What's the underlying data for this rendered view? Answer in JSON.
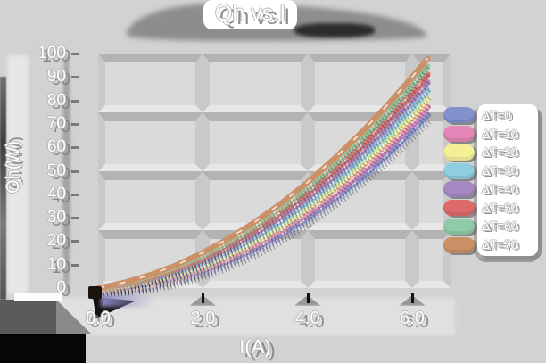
{
  "title": "Qh vs.I",
  "axes": {
    "x_label": "I(A)",
    "y_label": "Qh(W)",
    "x_ticks": [
      "0.0",
      "2.0",
      "4.0",
      "6.0"
    ],
    "y_ticks": [
      "0",
      "10",
      "20",
      "30",
      "40",
      "50",
      "60",
      "70",
      "80",
      "90",
      "100"
    ]
  },
  "legend": {
    "position": "right",
    "items": [
      {
        "label": "ΔT=0",
        "color": "#8290cc"
      },
      {
        "label": "ΔT=10",
        "color": "#e287b7"
      },
      {
        "label": "ΔT=20",
        "color": "#f5f098"
      },
      {
        "label": "ΔT=30",
        "color": "#8fcede"
      },
      {
        "label": "ΔT=40",
        "color": "#a688c3"
      },
      {
        "label": "ΔT=50",
        "color": "#dd6a6a"
      },
      {
        "label": "ΔT=60",
        "color": "#8fcba9"
      },
      {
        "label": "ΔT=70",
        "color": "#cc9066"
      }
    ]
  },
  "chart_data": {
    "type": "line",
    "title": "Qh vs.I",
    "xlabel": "I(A)",
    "ylabel": "Qh(W)",
    "xlim": [
      0,
      6.7
    ],
    "ylim": [
      0,
      100
    ],
    "x_tick_values": [
      0.0,
      2.0,
      4.0,
      6.0
    ],
    "y_tick_values": [
      0,
      10,
      20,
      30,
      40,
      50,
      60,
      70,
      80,
      90,
      100
    ],
    "grid": true,
    "legend_position": "right",
    "x": [
      0,
      0.5,
      1,
      1.5,
      2,
      2.5,
      3,
      3.5,
      4,
      4.5,
      5,
      5.5,
      6,
      6.3
    ],
    "series": [
      {
        "name": "ΔT=0",
        "color": "#8290cc",
        "values": [
          0,
          0.5,
          1.9,
          4.2,
          7.4,
          11.6,
          16.7,
          22.8,
          29.8,
          37.7,
          46.5,
          56.3,
          67.0,
          73.8
        ]
      },
      {
        "name": "ΔT=10",
        "color": "#e287b7",
        "values": [
          0,
          0.7,
          2.4,
          5.0,
          8.5,
          13.0,
          18.4,
          24.7,
          32.0,
          40.1,
          49.2,
          59.3,
          70.3,
          77.3
        ]
      },
      {
        "name": "ΔT=20",
        "color": "#f5f098",
        "values": [
          0,
          1.0,
          3.0,
          5.8,
          9.6,
          14.4,
          20.0,
          26.6,
          34.2,
          42.6,
          52.0,
          62.3,
          73.5,
          80.7
        ]
      },
      {
        "name": "ΔT=30",
        "color": "#8fcede",
        "values": [
          0,
          1.3,
          3.5,
          6.7,
          10.7,
          15.7,
          21.7,
          28.5,
          36.4,
          45.1,
          54.7,
          65.3,
          76.8,
          84.2
        ]
      },
      {
        "name": "ΔT=40",
        "color": "#a688c3",
        "values": [
          0,
          1.6,
          4.1,
          7.5,
          11.8,
          17.1,
          23.3,
          30.5,
          38.5,
          47.5,
          57.5,
          68.3,
          80.1,
          87.7
        ]
      },
      {
        "name": "ΔT=50",
        "color": "#dd6a6a",
        "values": [
          0,
          1.8,
          4.6,
          8.3,
          12.9,
          18.5,
          25.0,
          32.4,
          40.7,
          50.0,
          60.2,
          71.4,
          83.4,
          91.1
        ]
      },
      {
        "name": "ΔT=60",
        "color": "#8fcba9",
        "values": [
          0,
          2.1,
          5.2,
          9.1,
          14.0,
          19.9,
          26.6,
          34.3,
          42.9,
          52.5,
          63.0,
          74.4,
          86.7,
          94.6
        ]
      },
      {
        "name": "ΔT=70",
        "color": "#cc9066",
        "values": [
          0,
          2.4,
          5.7,
          9.9,
          15.1,
          21.2,
          28.3,
          36.2,
          45.1,
          55.0,
          65.7,
          77.4,
          90.0,
          98.0
        ]
      }
    ]
  }
}
